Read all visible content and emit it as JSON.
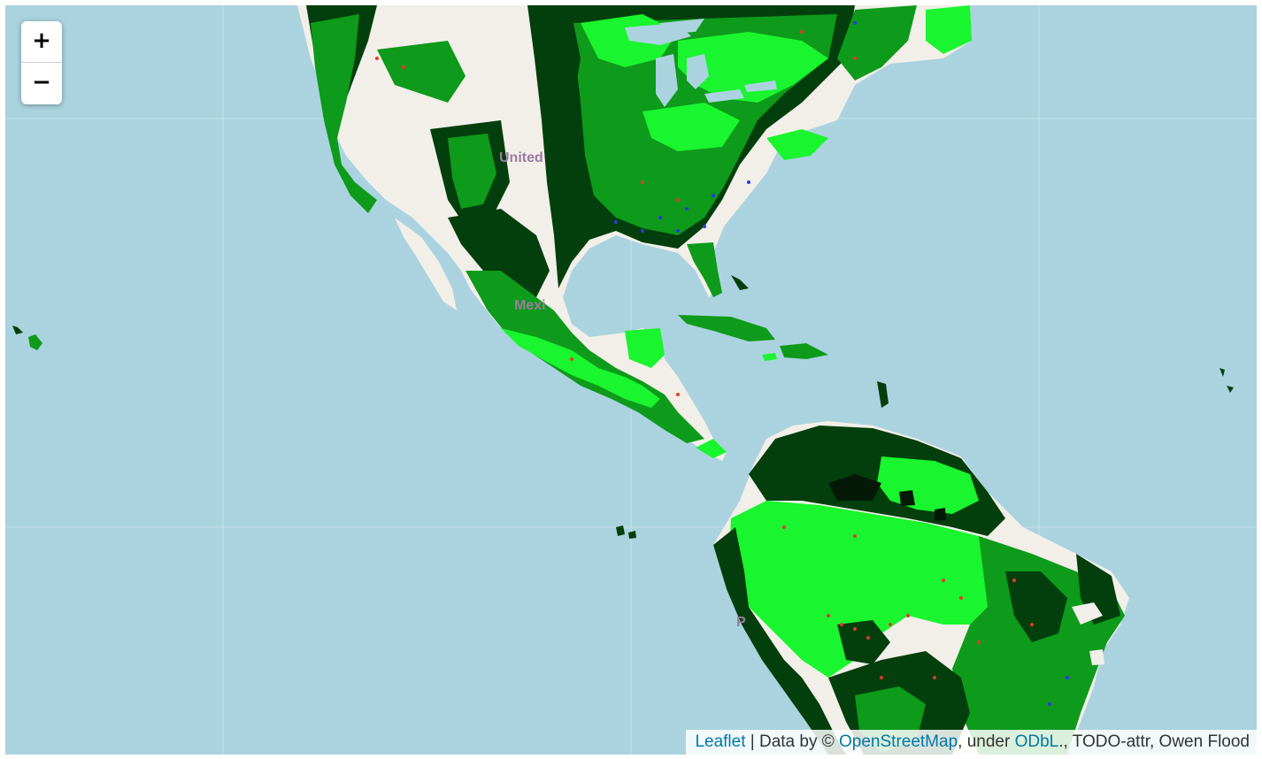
{
  "map": {
    "colors": {
      "ocean": "#aad3df",
      "land_bare": "#f2efe9",
      "vegetation_dense": "#19f52e",
      "vegetation_mid": "#0e9a1a",
      "vegetation_dark": "#033f0c",
      "cover_black": "#041a06",
      "gridline": "#c9e4ec",
      "points_red": "#e23a2a",
      "points_blue": "#2a3ae2"
    },
    "labels": {
      "united_states": "United",
      "mexico": "Mexi",
      "peru": "P"
    }
  },
  "zoom": {
    "in_label": "+",
    "out_label": "−"
  },
  "attribution": {
    "leaflet": "Leaflet",
    "separator": " | Data by © ",
    "osm": "OpenStreetMap",
    "under": ", under ",
    "odbl": "ODbL",
    "rest": "., TODO-attr, Owen Flood"
  }
}
